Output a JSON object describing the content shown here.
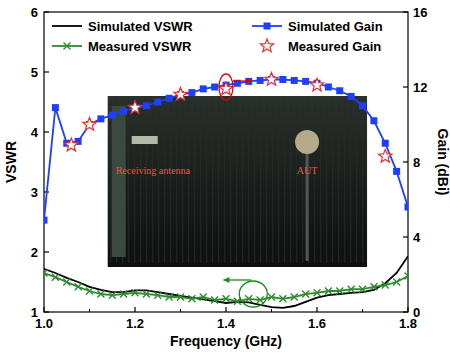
{
  "chart_data": {
    "type": "line",
    "x_label": "Frequency (GHz)",
    "y_label": "VSWR",
    "y2_label": "Gain (dBi)",
    "xlim": [
      1.0,
      1.8
    ],
    "xticks": [
      {
        "value": 1.0,
        "label": "1.0"
      },
      1.2,
      1.4,
      1.6,
      1.8
    ],
    "ylim": [
      1,
      6
    ],
    "yticks": [
      1,
      2,
      3,
      4,
      5,
      6
    ],
    "y2lim": [
      0,
      16
    ],
    "y2ticks": [
      0,
      4,
      8,
      12,
      16
    ],
    "grid": false,
    "legend": "top",
    "annotations": [
      "Receiving antenna",
      "AUT"
    ],
    "series": [
      {
        "name": "Simulated VSWR",
        "color": "#000000",
        "marker": "none",
        "line_style": "solid",
        "x": [
          1.0,
          1.025,
          1.05,
          1.075,
          1.1,
          1.125,
          1.15,
          1.175,
          1.2,
          1.225,
          1.25,
          1.275,
          1.3,
          1.325,
          1.35,
          1.375,
          1.4,
          1.425,
          1.45,
          1.475,
          1.5,
          1.525,
          1.55,
          1.575,
          1.6,
          1.625,
          1.65,
          1.675,
          1.7,
          1.725,
          1.75,
          1.775,
          1.8
        ],
        "values": [
          1.72,
          1.65,
          1.57,
          1.5,
          1.42,
          1.37,
          1.33,
          1.33,
          1.36,
          1.36,
          1.33,
          1.3,
          1.27,
          1.24,
          1.21,
          1.18,
          1.15,
          1.17,
          1.16,
          1.12,
          1.08,
          1.07,
          1.1,
          1.17,
          1.24,
          1.28,
          1.3,
          1.32,
          1.33,
          1.37,
          1.48,
          1.65,
          1.93
        ]
      },
      {
        "name": "Measured VSWR",
        "color": "#2e8b2e",
        "marker": "x",
        "line_style": "solid",
        "x": [
          1.0,
          1.025,
          1.05,
          1.075,
          1.1,
          1.125,
          1.15,
          1.175,
          1.2,
          1.225,
          1.25,
          1.275,
          1.3,
          1.325,
          1.35,
          1.375,
          1.4,
          1.425,
          1.45,
          1.475,
          1.5,
          1.525,
          1.55,
          1.575,
          1.6,
          1.625,
          1.65,
          1.675,
          1.7,
          1.725,
          1.75,
          1.775,
          1.8
        ],
        "values": [
          1.65,
          1.58,
          1.5,
          1.42,
          1.35,
          1.3,
          1.28,
          1.3,
          1.32,
          1.3,
          1.28,
          1.25,
          1.25,
          1.22,
          1.25,
          1.2,
          1.22,
          1.18,
          1.22,
          1.2,
          1.25,
          1.22,
          1.25,
          1.3,
          1.32,
          1.35,
          1.35,
          1.38,
          1.38,
          1.42,
          1.45,
          1.5,
          1.6
        ]
      },
      {
        "name": "Simulated Gain",
        "color": "#1f3fff",
        "marker": "square",
        "line_style": "solid",
        "axis": "y2",
        "x": [
          1.0,
          1.025,
          1.05,
          1.075,
          1.1,
          1.125,
          1.15,
          1.175,
          1.2,
          1.225,
          1.25,
          1.275,
          1.3,
          1.325,
          1.35,
          1.375,
          1.4,
          1.425,
          1.45,
          1.475,
          1.5,
          1.525,
          1.55,
          1.575,
          1.6,
          1.625,
          1.65,
          1.675,
          1.7,
          1.725,
          1.75,
          1.775,
          1.8
        ],
        "values": [
          4.9,
          10.9,
          9.0,
          9.1,
          10.0,
          10.3,
          10.5,
          10.7,
          10.9,
          11.0,
          11.2,
          11.4,
          11.6,
          11.7,
          11.9,
          12.0,
          12.1,
          12.2,
          12.3,
          12.35,
          12.4,
          12.4,
          12.35,
          12.3,
          12.2,
          12.0,
          11.8,
          11.5,
          11.0,
          10.2,
          9.0,
          7.5,
          5.6
        ]
      },
      {
        "name": "Measured Gain",
        "color": "#e03030",
        "marker": "star",
        "line_style": "none",
        "axis": "y2",
        "x": [
          1.06,
          1.1,
          1.2,
          1.3,
          1.4,
          1.5,
          1.6,
          1.75
        ],
        "values": [
          8.9,
          10.0,
          10.9,
          11.6,
          11.9,
          12.4,
          12.1,
          8.3
        ]
      }
    ]
  }
}
